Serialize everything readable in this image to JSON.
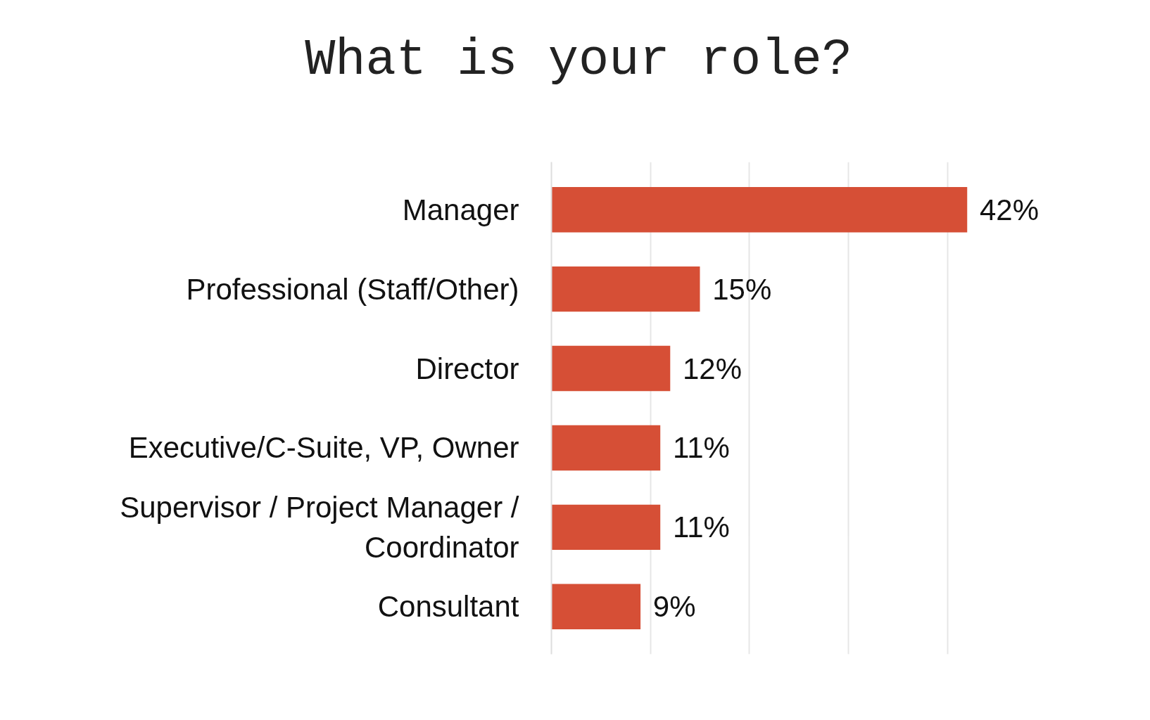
{
  "chart_data": {
    "type": "bar",
    "title": "What is your role?",
    "orientation": "horizontal",
    "categories": [
      "Manager",
      "Professional (Staff/Other)",
      "Director",
      "Executive/C-Suite, VP, Owner",
      "Supervisor / Project Manager / Coordinator",
      "Consultant"
    ],
    "values": [
      42,
      15,
      12,
      11,
      11,
      9
    ],
    "value_labels": [
      "42%",
      "15%",
      "12%",
      "11%",
      "11%",
      "9%"
    ],
    "color": "#d64f36",
    "grid": "x",
    "tick_labels": "y"
  }
}
